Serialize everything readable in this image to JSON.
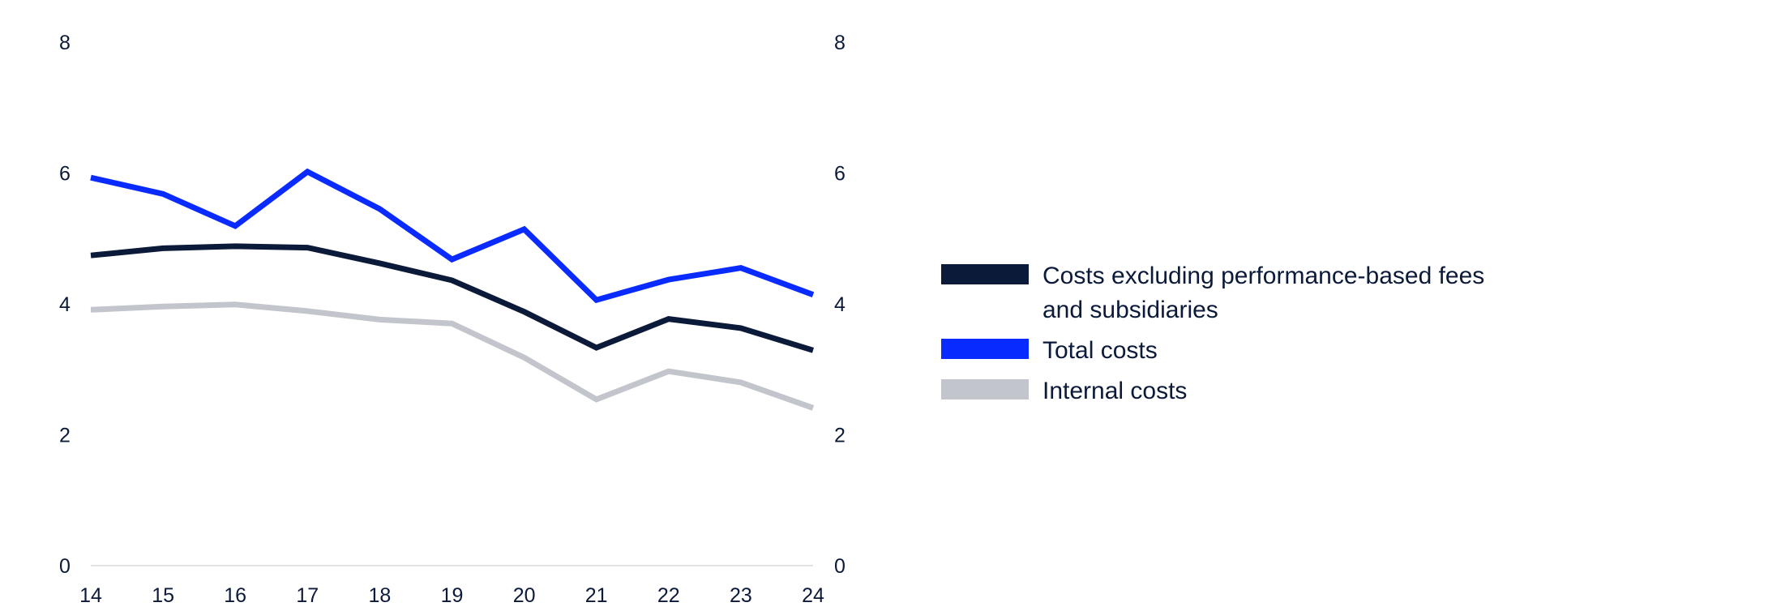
{
  "chart_data": {
    "type": "line",
    "title": "",
    "xlabel": "",
    "ylabel": "",
    "x": [
      "14",
      "15",
      "16",
      "17",
      "18",
      "19",
      "20",
      "21",
      "22",
      "23",
      "24"
    ],
    "ylim": [
      0,
      8
    ],
    "yticks": [
      "0",
      "2",
      "4",
      "6",
      "8"
    ],
    "y_axes": "left and right (mirrored)",
    "grid": false,
    "legend_position": "right",
    "series": [
      {
        "name": "Costs excluding performance-based fees and subsidiaries",
        "color": "#0c1a3a",
        "values": [
          4.74,
          4.85,
          4.88,
          4.86,
          4.62,
          4.36,
          3.88,
          3.33,
          3.77,
          3.63,
          3.29
        ]
      },
      {
        "name": "Total costs",
        "color": "#0a2bff",
        "values": [
          5.93,
          5.68,
          5.19,
          6.02,
          5.45,
          4.68,
          5.14,
          4.06,
          4.37,
          4.55,
          4.14
        ]
      },
      {
        "name": "Internal costs",
        "color": "#c2c5cc",
        "values": [
          3.91,
          3.96,
          3.99,
          3.89,
          3.76,
          3.7,
          3.18,
          2.54,
          2.97,
          2.8,
          2.41
        ]
      }
    ]
  }
}
